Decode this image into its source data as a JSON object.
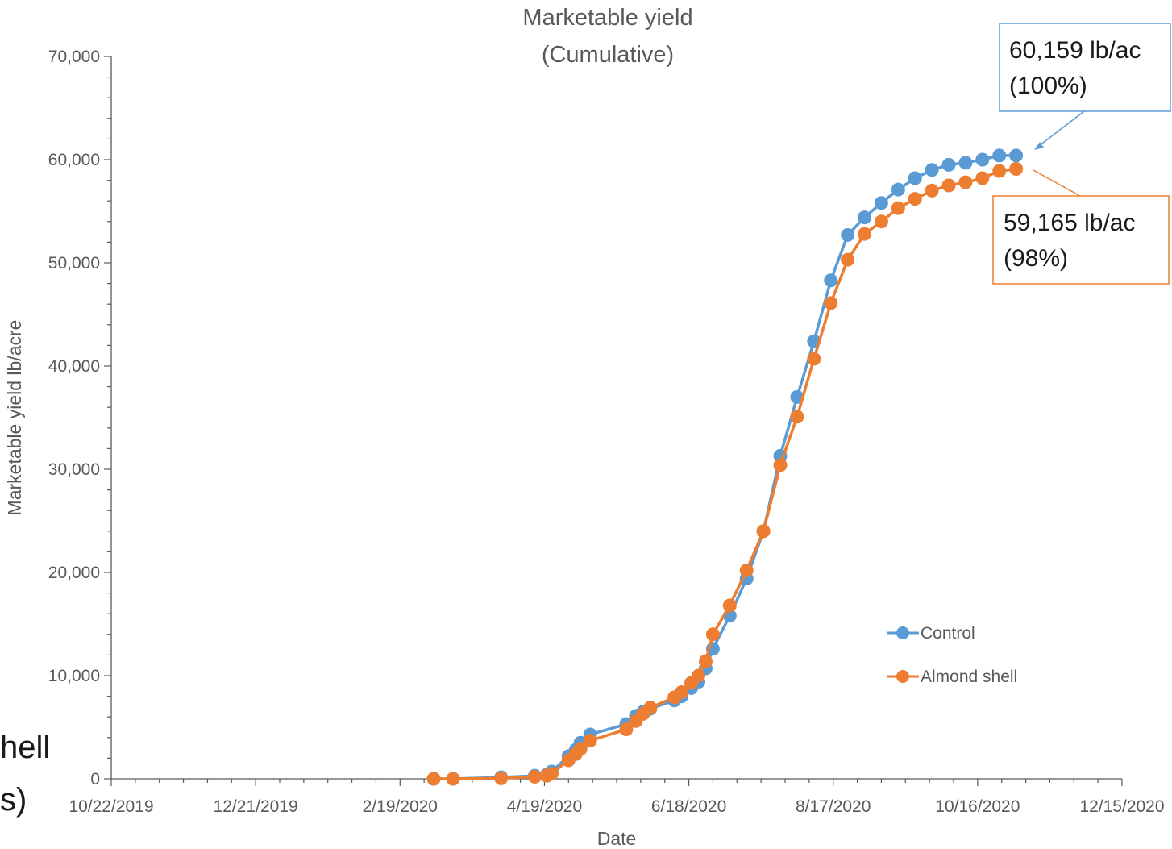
{
  "background_fragments": [
    "hell",
    "s)"
  ],
  "chart_data": {
    "type": "line",
    "title": "Marketable yield",
    "subtitle": "(Cumulative)",
    "xlabel": "Date",
    "ylabel": "Marketable yield lb/acre",
    "x_range": [
      "2019-10-22",
      "2020-12-15"
    ],
    "x_tick_labels": [
      "10/22/2019",
      "12/21/2019",
      "2/19/2020",
      "4/19/2020",
      "6/18/2020",
      "8/17/2020",
      "10/16/2020",
      "12/15/2020"
    ],
    "ylim": [
      0,
      70000
    ],
    "y_tick_labels": [
      "0",
      "10,000",
      "20,000",
      "30,000",
      "40,000",
      "50,000",
      "60,000",
      "70,000"
    ],
    "grid": false,
    "legend_position": "right",
    "series": [
      {
        "name": "Control",
        "color": "#5b9bd5",
        "points": [
          [
            "2020-03-04",
            0
          ],
          [
            "2020-03-12",
            0
          ],
          [
            "2020-04-01",
            150
          ],
          [
            "2020-04-15",
            300
          ],
          [
            "2020-04-20",
            400
          ],
          [
            "2020-04-22",
            700
          ],
          [
            "2020-04-29",
            2200
          ],
          [
            "2020-05-02",
            2800
          ],
          [
            "2020-05-04",
            3500
          ],
          [
            "2020-05-08",
            4300
          ],
          [
            "2020-05-23",
            5300
          ],
          [
            "2020-05-27",
            6100
          ],
          [
            "2020-05-30",
            6500
          ],
          [
            "2020-06-02",
            6800
          ],
          [
            "2020-06-12",
            7600
          ],
          [
            "2020-06-15",
            8000
          ],
          [
            "2020-06-19",
            8800
          ],
          [
            "2020-06-22",
            9400
          ],
          [
            "2020-06-25",
            10700
          ],
          [
            "2020-06-28",
            12600
          ],
          [
            "2020-07-05",
            15800
          ],
          [
            "2020-07-12",
            19400
          ],
          [
            "2020-07-19",
            24000
          ],
          [
            "2020-07-26",
            31300
          ],
          [
            "2020-08-02",
            37000
          ],
          [
            "2020-08-09",
            42400
          ],
          [
            "2020-08-16",
            48300
          ],
          [
            "2020-08-23",
            52700
          ],
          [
            "2020-08-30",
            54400
          ],
          [
            "2020-09-06",
            55800
          ],
          [
            "2020-09-13",
            57100
          ],
          [
            "2020-09-20",
            58200
          ],
          [
            "2020-09-27",
            59000
          ],
          [
            "2020-10-04",
            59500
          ],
          [
            "2020-10-11",
            59700
          ],
          [
            "2020-10-18",
            60000
          ],
          [
            "2020-10-25",
            60400
          ],
          [
            "2020-11-01",
            60400
          ]
        ]
      },
      {
        "name": "Almond shell",
        "color": "#ed7d31",
        "points": [
          [
            "2020-03-04",
            0
          ],
          [
            "2020-03-12",
            0
          ],
          [
            "2020-04-01",
            50
          ],
          [
            "2020-04-15",
            200
          ],
          [
            "2020-04-20",
            300
          ],
          [
            "2020-04-22",
            500
          ],
          [
            "2020-04-29",
            1800
          ],
          [
            "2020-05-02",
            2400
          ],
          [
            "2020-05-04",
            2900
          ],
          [
            "2020-05-08",
            3700
          ],
          [
            "2020-05-23",
            4800
          ],
          [
            "2020-05-27",
            5600
          ],
          [
            "2020-05-30",
            6300
          ],
          [
            "2020-06-02",
            6900
          ],
          [
            "2020-06-12",
            7900
          ],
          [
            "2020-06-15",
            8400
          ],
          [
            "2020-06-19",
            9300
          ],
          [
            "2020-06-22",
            10000
          ],
          [
            "2020-06-25",
            11400
          ],
          [
            "2020-06-28",
            14000
          ],
          [
            "2020-07-05",
            16800
          ],
          [
            "2020-07-12",
            20200
          ],
          [
            "2020-07-19",
            24000
          ],
          [
            "2020-07-26",
            30400
          ],
          [
            "2020-08-02",
            35100
          ],
          [
            "2020-08-09",
            40700
          ],
          [
            "2020-08-16",
            46100
          ],
          [
            "2020-08-23",
            50300
          ],
          [
            "2020-08-30",
            52800
          ],
          [
            "2020-09-06",
            54000
          ],
          [
            "2020-09-13",
            55300
          ],
          [
            "2020-09-20",
            56200
          ],
          [
            "2020-09-27",
            57000
          ],
          [
            "2020-10-04",
            57500
          ],
          [
            "2020-10-11",
            57800
          ],
          [
            "2020-10-18",
            58200
          ],
          [
            "2020-10-25",
            58900
          ],
          [
            "2020-11-01",
            59100
          ]
        ]
      }
    ],
    "annotations": [
      {
        "series": "Control",
        "lines": [
          "60,159 lb/ac",
          "(100%)"
        ],
        "color": "#5b9bd5"
      },
      {
        "series": "Almond shell",
        "lines": [
          "59,165 lb/ac",
          "(98%)"
        ],
        "color": "#ed7d31"
      }
    ]
  }
}
